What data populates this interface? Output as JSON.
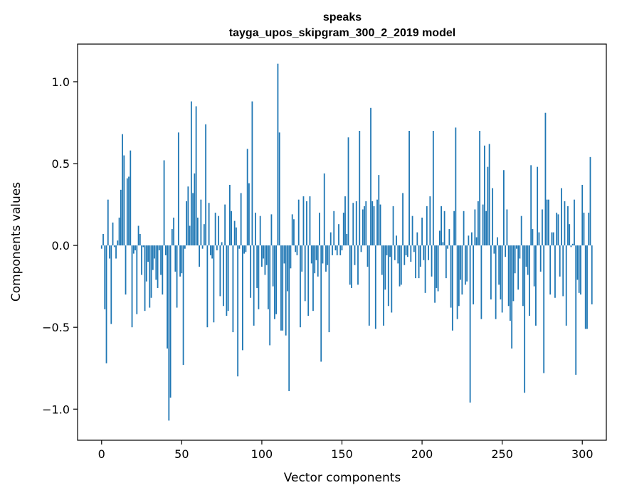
{
  "chart_data": {
    "type": "bar",
    "title": "speaks",
    "subtitle": "tayga_upos_skipgram_300_2_2019 model",
    "xlabel": "Vector components",
    "ylabel": "Components values",
    "xlim": [
      -15,
      315
    ],
    "ylim": [
      -1.19,
      1.23
    ],
    "xticks": [
      0,
      50,
      100,
      150,
      200,
      250,
      300
    ],
    "xtick_labels": [
      "0",
      "50",
      "100",
      "150",
      "200",
      "250",
      "300"
    ],
    "yticks": [
      -1.0,
      -0.5,
      0.0,
      0.5,
      1.0
    ],
    "ytick_labels": [
      "−1.0",
      "−0.5",
      "0.0",
      "0.5",
      "1.0"
    ],
    "bar_color": "#1f77b4",
    "grid": false,
    "values": [
      -0.02,
      0.07,
      -0.39,
      -0.72,
      0.28,
      -0.08,
      -0.48,
      0.14,
      -0.01,
      -0.08,
      0.03,
      0.17,
      0.34,
      0.68,
      0.55,
      -0.3,
      0.41,
      0.42,
      0.58,
      -0.5,
      -0.05,
      -0.03,
      -0.42,
      0.12,
      0.07,
      -0.18,
      -0.01,
      -0.4,
      -0.22,
      -0.1,
      -0.38,
      -0.32,
      -0.15,
      -0.08,
      -0.21,
      -0.26,
      -0.03,
      -0.18,
      -0.3,
      0.52,
      -0.06,
      -0.63,
      -1.07,
      -0.93,
      0.1,
      0.17,
      -0.16,
      -0.38,
      0.69,
      -0.19,
      -0.17,
      -0.73,
      -0.02,
      0.27,
      0.36,
      0.12,
      0.88,
      0.32,
      0.44,
      0.85,
      0.17,
      -0.13,
      0.28,
      -0.02,
      0.13,
      0.74,
      -0.5,
      0.26,
      -0.06,
      -0.08,
      -0.47,
      0.2,
      -0.03,
      0.18,
      -0.31,
      0.02,
      -0.37,
      0.25,
      -0.43,
      -0.4,
      0.37,
      0.21,
      -0.53,
      0.15,
      0.11,
      -0.8,
      -0.02,
      0.32,
      -0.64,
      -0.05,
      -0.04,
      0.59,
      0.38,
      -0.32,
      0.88,
      -0.49,
      0.2,
      -0.26,
      -0.39,
      0.18,
      -0.13,
      -0.08,
      -0.18,
      -0.12,
      -0.39,
      -0.61,
      0.19,
      -0.25,
      -0.45,
      -0.42,
      1.11,
      0.69,
      -0.52,
      -0.52,
      -0.11,
      -0.55,
      -0.28,
      -0.89,
      -0.14,
      0.19,
      0.16,
      -0.04,
      -0.06,
      0.28,
      -0.5,
      -0.16,
      0.3,
      -0.34,
      0.27,
      -0.43,
      0.3,
      -0.11,
      -0.4,
      -0.17,
      -0.09,
      -0.19,
      0.2,
      -0.71,
      -0.11,
      0.44,
      -0.16,
      -0.12,
      -0.53,
      0.08,
      -0.06,
      0.21,
      -0.03,
      -0.06,
      0.13,
      -0.06,
      -0.03,
      0.2,
      0.3,
      0.07,
      0.66,
      -0.24,
      -0.26,
      0.26,
      -0.12,
      0.27,
      -0.24,
      0.7,
      -0.04,
      0.22,
      0.24,
      0.27,
      -0.13,
      -0.49,
      0.84,
      0.27,
      0.24,
      -0.51,
      0.28,
      0.43,
      0.25,
      -0.18,
      -0.49,
      -0.27,
      -0.06,
      -0.37,
      -0.07,
      -0.41,
      0.24,
      -0.09,
      0.06,
      -0.11,
      -0.25,
      -0.24,
      0.32,
      -0.12,
      -0.06,
      -0.07,
      0.7,
      -0.1,
      0.18,
      -0.04,
      -0.2,
      0.08,
      -0.2,
      -0.13,
      0.17,
      -0.09,
      -0.29,
      0.24,
      -0.09,
      0.3,
      -0.19,
      0.7,
      -0.35,
      -0.26,
      -0.28,
      0.09,
      0.24,
      0.02,
      0.21,
      -0.2,
      -0.02,
      0.1,
      -0.38,
      -0.52,
      0.21,
      0.72,
      -0.45,
      -0.37,
      -0.21,
      -0.3,
      0.21,
      -0.24,
      -0.22,
      0.06,
      -0.96,
      0.08,
      -0.36,
      0.22,
      0.05,
      0.27,
      0.7,
      -0.45,
      0.25,
      0.61,
      0.21,
      0.48,
      0.62,
      -0.33,
      0.35,
      -0.05,
      -0.45,
      0.05,
      -0.24,
      -0.33,
      -0.41,
      0.46,
      -0.07,
      0.22,
      -0.37,
      -0.46,
      -0.63,
      -0.34,
      -0.17,
      -0.02,
      -0.27,
      -0.08,
      0.18,
      -0.37,
      -0.9,
      -0.13,
      -0.18,
      -0.43,
      0.49,
      0.1,
      -0.25,
      -0.49,
      0.48,
      0.08,
      -0.16,
      0.22,
      -0.78,
      0.81,
      0.28,
      0.28,
      -0.3,
      0.08,
      0.08,
      -0.32,
      0.2,
      0.19,
      -0.19,
      0.35,
      -0.31,
      0.27,
      -0.49,
      0.24,
      0.13,
      -0.01,
      0.01,
      0.28,
      -0.79,
      -0.21,
      -0.29,
      -0.3,
      0.37,
      0.2,
      -0.51,
      -0.51,
      0.2,
      0.54,
      -0.36
    ]
  }
}
